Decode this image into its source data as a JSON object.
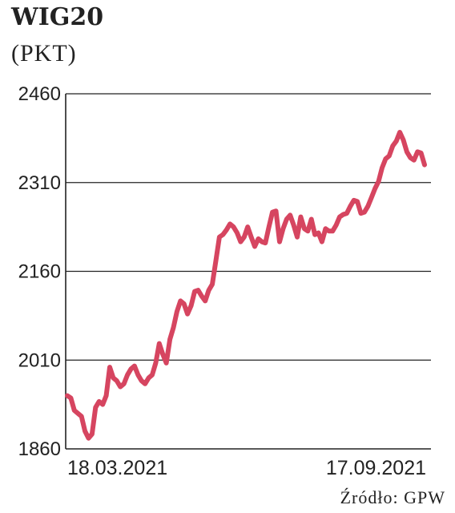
{
  "header": {
    "title": "WIG20",
    "unit": "(PKT)"
  },
  "footer": {
    "source": "Źródło: GPW"
  },
  "chart_data": {
    "type": "line",
    "title": "WIG20",
    "ylabel": "(PKT)",
    "xlabel": "",
    "ylim": [
      1860,
      2460
    ],
    "yticks": [
      "2460",
      "2310",
      "2160",
      "2010",
      "1860"
    ],
    "xticks": [
      "18.03.2021",
      "17.09.2021"
    ],
    "grid": true,
    "color": "#d64560",
    "series": [
      {
        "values": [
          1950,
          1946,
          1925,
          1920,
          1915,
          1890,
          1878,
          1885,
          1930,
          1940,
          1935,
          1950,
          1998,
          1980,
          1975,
          1965,
          1970,
          1985,
          1995,
          2000,
          1985,
          1975,
          1970,
          1980,
          1985,
          2005,
          2038,
          2020,
          2005,
          2045,
          2065,
          2092,
          2110,
          2105,
          2088,
          2102,
          2126,
          2128,
          2118,
          2110,
          2128,
          2138,
          2178,
          2218,
          2222,
          2230,
          2240,
          2235,
          2225,
          2210,
          2218,
          2235,
          2218,
          2202,
          2215,
          2210,
          2208,
          2235,
          2260,
          2262,
          2210,
          2232,
          2248,
          2255,
          2238,
          2218,
          2252,
          2232,
          2228,
          2248,
          2222,
          2225,
          2210,
          2232,
          2228,
          2228,
          2238,
          2252,
          2256,
          2258,
          2270,
          2280,
          2278,
          2258,
          2260,
          2270,
          2285,
          2300,
          2312,
          2335,
          2350,
          2355,
          2372,
          2380,
          2395,
          2382,
          2362,
          2352,
          2348,
          2362,
          2360,
          2340
        ]
      }
    ]
  }
}
